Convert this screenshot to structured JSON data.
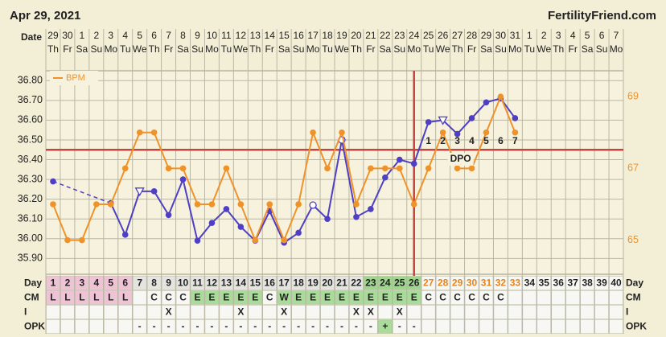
{
  "chart_data": {
    "type": "line",
    "title": "Apr 29, 2021",
    "site": "FertilityFriend.com",
    "date_label": "Date",
    "categories": [
      "29",
      "30",
      "1",
      "2",
      "3",
      "4",
      "5",
      "6",
      "7",
      "8",
      "9",
      "10",
      "11",
      "12",
      "13",
      "14",
      "15",
      "16",
      "17",
      "18",
      "19",
      "20",
      "21",
      "22",
      "23",
      "24",
      "25",
      "26",
      "27",
      "28",
      "29",
      "30",
      "31",
      "1",
      "2",
      "3",
      "4",
      "5",
      "6",
      "7"
    ],
    "weekdays": [
      "Th",
      "Fr",
      "Sa",
      "Su",
      "Mo",
      "Tu",
      "We",
      "Th",
      "Fr",
      "Sa",
      "Su",
      "Mo",
      "Tu",
      "We",
      "Th",
      "Fr",
      "Sa",
      "Su",
      "Mo",
      "Tu",
      "We",
      "Th",
      "Fr",
      "Sa",
      "Su",
      "Mo",
      "Tu",
      "We",
      "Th",
      "Fr",
      "Sa",
      "Su",
      "Mo",
      "Tu",
      "We",
      "Th",
      "Fr",
      "Sa",
      "Su",
      "Mo"
    ],
    "ylim": [
      35.82,
      36.85
    ],
    "yticks": [
      {
        "value": 35.9,
        "label": "35.90"
      },
      {
        "value": 36.0,
        "label": "36.00"
      },
      {
        "value": 36.1,
        "label": "36.10"
      },
      {
        "value": 36.2,
        "label": "36.20"
      },
      {
        "value": 36.3,
        "label": "36.30"
      },
      {
        "value": 36.4,
        "label": "36.40"
      },
      {
        "value": 36.5,
        "label": "36.50"
      },
      {
        "value": 36.6,
        "label": "36.60"
      },
      {
        "value": 36.7,
        "label": "36.70"
      },
      {
        "value": 36.8,
        "label": "36.80"
      }
    ],
    "y2lim": [
      64.05,
      69.72
    ],
    "y2ticks": [
      65,
      67,
      69
    ],
    "grid": true,
    "series": [
      {
        "color": "#4f3fc4",
        "values": [
          36.29,
          null,
          null,
          null,
          36.18,
          36.02,
          36.24,
          36.24,
          36.12,
          36.3,
          35.99,
          36.08,
          36.15,
          36.06,
          35.99,
          36.14,
          35.98,
          36.03,
          36.17,
          36.1,
          36.5,
          36.11,
          36.15,
          36.31,
          36.4,
          36.38,
          36.59,
          36.6,
          36.53,
          36.61,
          36.69,
          36.71,
          36.61,
          null,
          null,
          null,
          null,
          null,
          null,
          null
        ],
        "markers": [
          "filled",
          null,
          null,
          null,
          "filled",
          "filled",
          "triangle",
          "filled",
          "filled",
          "filled",
          "filled",
          "filled",
          "filled",
          "filled",
          "filled",
          "filled",
          "filled",
          "filled",
          "circle",
          "filled",
          "circle",
          "filled",
          "filled",
          "filled",
          "filled",
          "filled",
          "filled",
          "triangle",
          "filled",
          "filled",
          "filled",
          "filled",
          "filled",
          null,
          null,
          null,
          null,
          null,
          null,
          null
        ]
      },
      {
        "name": "BPM",
        "color": "#f0922a",
        "axis": "y2",
        "values": [
          66,
          65,
          65,
          66,
          66,
          67,
          68,
          68,
          67,
          67,
          66,
          66,
          67,
          66,
          65,
          66,
          65,
          66,
          68,
          67,
          68,
          66,
          67,
          67,
          67,
          66,
          67,
          68,
          67,
          67,
          68,
          69,
          68,
          null,
          null,
          null,
          null,
          null,
          null,
          null
        ]
      }
    ],
    "coverline": 36.45,
    "coverline_color": "#c9423f",
    "ovulation_day": 26,
    "dpo_days": [
      1,
      2,
      3,
      4,
      5,
      6,
      7
    ],
    "dpo_label": "DPO",
    "legend": "top-left",
    "rows": {
      "day_label": "Day",
      "days": [
        1,
        2,
        3,
        4,
        5,
        6,
        7,
        8,
        9,
        10,
        11,
        12,
        13,
        14,
        15,
        16,
        17,
        18,
        19,
        20,
        21,
        22,
        23,
        24,
        25,
        26,
        27,
        28,
        29,
        30,
        31,
        32,
        33,
        34,
        35,
        36,
        37,
        38,
        39,
        40
      ],
      "cm_label": "CM",
      "cm": [
        "L",
        "L",
        "L",
        "L",
        "L",
        "L",
        null,
        "C",
        "C",
        "C",
        "E",
        "E",
        "E",
        "E",
        "E",
        "C",
        "W",
        "E",
        "E",
        "E",
        "E",
        "E",
        "E",
        "E",
        "E",
        "E",
        "C",
        "C",
        "C",
        "C",
        "C",
        "C",
        null,
        null,
        null,
        null,
        null,
        null,
        null,
        null
      ],
      "i_label": "I",
      "intercourse": [
        null,
        null,
        null,
        null,
        null,
        null,
        null,
        null,
        "X",
        null,
        null,
        null,
        null,
        "X",
        null,
        null,
        "X",
        null,
        null,
        null,
        null,
        "X",
        "X",
        null,
        "X",
        null,
        null,
        null,
        null,
        null,
        null,
        null,
        null,
        null,
        null,
        null,
        null,
        null,
        null,
        null
      ],
      "opk_label": "OPK",
      "opk": [
        null,
        null,
        null,
        null,
        null,
        null,
        "-",
        "-",
        "-",
        "-",
        "-",
        "-",
        "-",
        "-",
        "-",
        "-",
        "-",
        "-",
        "-",
        "-",
        "-",
        "-",
        "-",
        "+",
        "-",
        "-",
        null,
        null,
        null,
        null,
        null,
        null,
        null,
        null,
        null,
        null,
        null,
        null,
        null,
        null
      ]
    }
  }
}
